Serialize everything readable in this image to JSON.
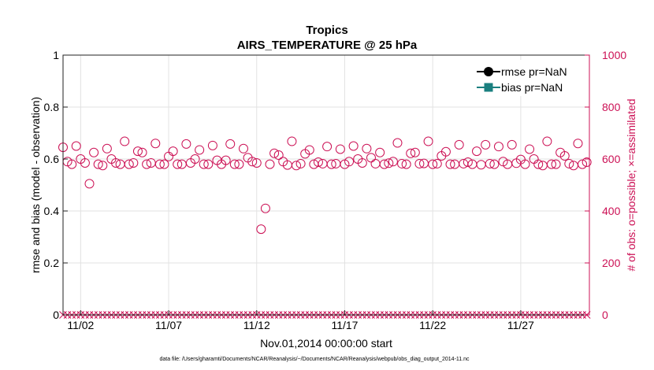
{
  "chart_data": {
    "type": "scatter",
    "title": "Tropics",
    "subtitle": "AIRS_TEMPERATURE @ 25 hPa",
    "xlabel": "Nov.01,2014 00:00:00 start",
    "ylabel": "rmse and bias (model - observation)",
    "y2label": "# of obs: o=possible; ×=assimilated",
    "footnote": "data file: /Users/gharamti/Documents/NCAR/Reanalysis/~/Documents/NCAR/Reanalysis/webpub/obs_diag_output_2014-11.nc",
    "xlim": [
      1,
      30.9
    ],
    "ylim": [
      0,
      1
    ],
    "y2lim": [
      0,
      1000
    ],
    "yticks": [
      0,
      0.2,
      0.4,
      0.6,
      0.8,
      1
    ],
    "y2ticks": [
      0,
      200,
      400,
      600,
      800,
      1000
    ],
    "xticks": [
      {
        "value": 2,
        "label": "11/02"
      },
      {
        "value": 7,
        "label": "11/07"
      },
      {
        "value": 12,
        "label": "11/12"
      },
      {
        "value": 17,
        "label": "11/17"
      },
      {
        "value": 22,
        "label": "11/22"
      },
      {
        "value": 27,
        "label": "11/27"
      }
    ],
    "legend": {
      "position": "top-right",
      "entries": [
        {
          "label": "rmse pr=NaN",
          "color": "#000000",
          "marker": "circle"
        },
        {
          "label": "bias pr=NaN",
          "color": "#1a7f7f",
          "marker": "square"
        }
      ]
    },
    "colors": {
      "obs": "#cc1155",
      "axis": "#222222",
      "grid": "#e2e2e2"
    },
    "series": [
      {
        "name": "possible",
        "marker": "circle",
        "axis": "right",
        "x": [
          1.0,
          1.25,
          1.5,
          1.75,
          2.0,
          2.25,
          2.5,
          2.75,
          3.0,
          3.25,
          3.5,
          3.75,
          4.0,
          4.25,
          4.5,
          4.75,
          5.0,
          5.25,
          5.5,
          5.75,
          6.0,
          6.25,
          6.5,
          6.75,
          7.0,
          7.25,
          7.5,
          7.75,
          8.0,
          8.25,
          8.5,
          8.75,
          9.0,
          9.25,
          9.5,
          9.75,
          10.0,
          10.25,
          10.5,
          10.75,
          11.0,
          11.25,
          11.5,
          11.75,
          12.0,
          12.25,
          12.5,
          12.75,
          13.0,
          13.25,
          13.5,
          13.75,
          14.0,
          14.25,
          14.5,
          14.75,
          15.0,
          15.25,
          15.5,
          15.75,
          16.0,
          16.25,
          16.5,
          16.75,
          17.0,
          17.25,
          17.5,
          17.75,
          18.0,
          18.25,
          18.5,
          18.75,
          19.0,
          19.25,
          19.5,
          19.75,
          20.0,
          20.25,
          20.5,
          20.75,
          21.0,
          21.25,
          21.5,
          21.75,
          22.0,
          22.25,
          22.5,
          22.75,
          23.0,
          23.25,
          23.5,
          23.75,
          24.0,
          24.25,
          24.5,
          24.75,
          25.0,
          25.25,
          25.5,
          25.75,
          26.0,
          26.25,
          26.5,
          26.75,
          27.0,
          27.25,
          27.5,
          27.75,
          28.0,
          28.25,
          28.5,
          28.75,
          29.0,
          29.25,
          29.5,
          29.75,
          30.0,
          30.25,
          30.5,
          30.75
        ],
        "values": [
          645,
          590,
          580,
          650,
          600,
          585,
          505,
          625,
          580,
          575,
          640,
          600,
          585,
          580,
          668,
          580,
          585,
          630,
          625,
          580,
          585,
          660,
          580,
          580,
          610,
          630,
          580,
          580,
          658,
          585,
          600,
          635,
          580,
          580,
          652,
          595,
          580,
          595,
          658,
          580,
          580,
          640,
          605,
          590,
          585,
          330,
          410,
          580,
          622,
          615,
          590,
          577,
          668,
          575,
          582,
          620,
          635,
          580,
          588,
          582,
          648,
          580,
          582,
          638,
          580,
          590,
          650,
          600,
          585,
          640,
          605,
          582,
          625,
          580,
          584,
          590,
          662,
          582,
          580,
          622,
          625,
          582,
          583,
          668,
          580,
          582,
          612,
          628,
          580,
          580,
          655,
          582,
          588,
          580,
          630,
          578,
          655,
          582,
          580,
          648,
          590,
          580,
          655,
          584,
          598,
          580,
          638,
          600,
          580,
          575,
          668,
          580,
          580,
          625,
          612,
          582,
          575,
          660,
          580,
          588
        ]
      },
      {
        "name": "assimilated",
        "marker": "x",
        "axis": "right",
        "x": [
          1.0,
          1.25,
          1.5,
          1.75,
          2.0,
          2.25,
          2.5,
          2.75,
          3.0,
          3.25,
          3.5,
          3.75,
          4.0,
          4.25,
          4.5,
          4.75,
          5.0,
          5.25,
          5.5,
          5.75,
          6.0,
          6.25,
          6.5,
          6.75,
          7.0,
          7.25,
          7.5,
          7.75,
          8.0,
          8.25,
          8.5,
          8.75,
          9.0,
          9.25,
          9.5,
          9.75,
          10.0,
          10.25,
          10.5,
          10.75,
          11.0,
          11.25,
          11.5,
          11.75,
          12.0,
          12.25,
          12.5,
          12.75,
          13.0,
          13.25,
          13.5,
          13.75,
          14.0,
          14.25,
          14.5,
          14.75,
          15.0,
          15.25,
          15.5,
          15.75,
          16.0,
          16.25,
          16.5,
          16.75,
          17.0,
          17.25,
          17.5,
          17.75,
          18.0,
          18.25,
          18.5,
          18.75,
          19.0,
          19.25,
          19.5,
          19.75,
          20.0,
          20.25,
          20.5,
          20.75,
          21.0,
          21.25,
          21.5,
          21.75,
          22.0,
          22.25,
          22.5,
          22.75,
          23.0,
          23.25,
          23.5,
          23.75,
          24.0,
          24.25,
          24.5,
          24.75,
          25.0,
          25.25,
          25.5,
          25.75,
          26.0,
          26.25,
          26.5,
          26.75,
          27.0,
          27.25,
          27.5,
          27.75,
          28.0,
          28.25,
          28.5,
          28.75,
          29.0,
          29.25,
          29.5,
          29.75,
          30.0,
          30.25,
          30.5,
          30.75
        ],
        "values": [
          0,
          0,
          0,
          0,
          0,
          0,
          0,
          0,
          0,
          0,
          0,
          0,
          0,
          0,
          0,
          0,
          0,
          0,
          0,
          0,
          0,
          0,
          0,
          0,
          0,
          0,
          0,
          0,
          0,
          0,
          0,
          0,
          0,
          0,
          0,
          0,
          0,
          0,
          0,
          0,
          0,
          0,
          0,
          0,
          0,
          0,
          0,
          0,
          0,
          0,
          0,
          0,
          0,
          0,
          0,
          0,
          0,
          0,
          0,
          0,
          0,
          0,
          0,
          0,
          0,
          0,
          0,
          0,
          0,
          0,
          0,
          0,
          0,
          0,
          0,
          0,
          0,
          0,
          0,
          0,
          0,
          0,
          0,
          0,
          0,
          0,
          0,
          0,
          0,
          0,
          0,
          0,
          0,
          0,
          0,
          0,
          0,
          0,
          0,
          0,
          0,
          0,
          0,
          0,
          0,
          0,
          0,
          0,
          0,
          0,
          0,
          0,
          0,
          0,
          0,
          0,
          0,
          0,
          0,
          0
        ]
      }
    ]
  }
}
